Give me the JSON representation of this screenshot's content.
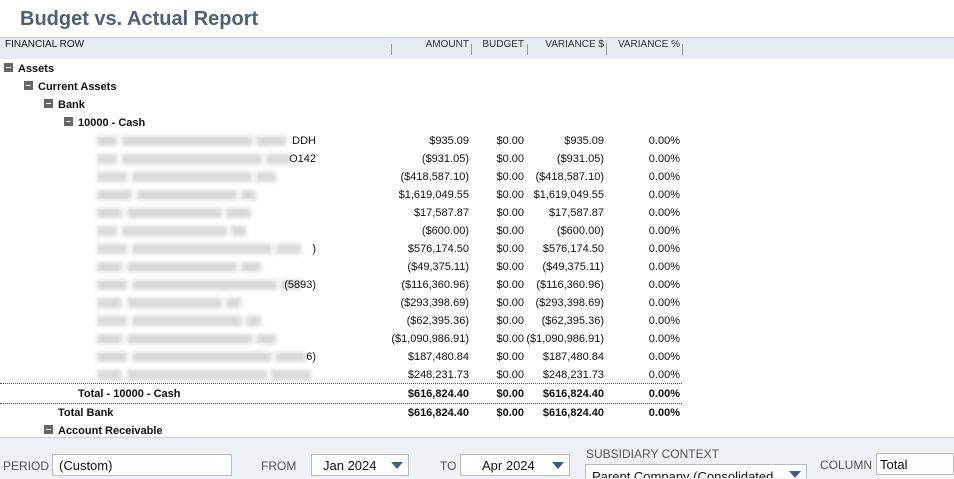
{
  "header": {
    "title": "Budget vs. Actual Report"
  },
  "table": {
    "columns": [
      "FINANCIAL ROW",
      "AMOUNT",
      "BUDGET",
      "VARIANCE $",
      "VARIANCE %"
    ],
    "groups": [
      "Assets",
      "Current Assets",
      "Bank",
      "10000 - Cash"
    ],
    "rows": [
      {
        "label": "DDH",
        "cells": [
          "$935.09",
          "$0.00",
          "$935.09",
          "0.00%"
        ]
      },
      {
        "label": "O142",
        "cells": [
          "($931.05)",
          "$0.00",
          "($931.05)",
          "0.00%"
        ]
      },
      {
        "cells": [
          "($418,587.10)",
          "$0.00",
          "($418,587.10)",
          "0.00%"
        ]
      },
      {
        "cells": [
          "$1,619,049.55",
          "$0.00",
          "$1,619,049.55",
          "0.00%"
        ]
      },
      {
        "cells": [
          "$17,587.87",
          "$0.00",
          "$17,587.87",
          "0.00%"
        ]
      },
      {
        "cells": [
          "($600.00)",
          "$0.00",
          "($600.00)",
          "0.00%"
        ]
      },
      {
        "label": ")",
        "cells": [
          "$576,174.50",
          "$0.00",
          "$576,174.50",
          "0.00%"
        ]
      },
      {
        "cells": [
          "($49,375.11)",
          "$0.00",
          "($49,375.11)",
          "0.00%"
        ]
      },
      {
        "label": "(5893)",
        "cells": [
          "($116,360.96)",
          "$0.00",
          "($116,360.96)",
          "0.00%"
        ]
      },
      {
        "cells": [
          "($293,398.69)",
          "$0.00",
          "($293,398.69)",
          "0.00%"
        ]
      },
      {
        "cells": [
          "($62,395.36)",
          "$0.00",
          "($62,395.36)",
          "0.00%"
        ]
      },
      {
        "cells": [
          "($1,090,986.91)",
          "$0.00",
          "($1,090,986.91)",
          "0.00%"
        ]
      },
      {
        "label": "6)",
        "cells": [
          "$187,480.84",
          "$0.00",
          "$187,480.84",
          "0.00%"
        ]
      },
      {
        "cells": [
          "$248,231.73",
          "$0.00",
          "$248,231.73",
          "0.00%"
        ]
      }
    ],
    "totals": [
      {
        "label": "Total - 10000 - Cash",
        "cells": [
          "$616,824.40",
          "$0.00",
          "$616,824.40",
          "0.00%"
        ]
      },
      {
        "label": "Total Bank",
        "cells": [
          "$616,824.40",
          "$0.00",
          "$616,824.40",
          "0.00%"
        ]
      }
    ],
    "next_group": "Account Receivable"
  },
  "footer": {
    "period_label": "PERIOD",
    "period": "(Custom)",
    "from_label": "FROM",
    "from": "Jan 2024",
    "to_label": "TO",
    "to": "Apr 2024",
    "subsidiary_label": "SUBSIDIARY CONTEXT",
    "subsidiary": "Parent Company (Consolidated",
    "column_label": "COLUMN",
    "column": "Total"
  }
}
